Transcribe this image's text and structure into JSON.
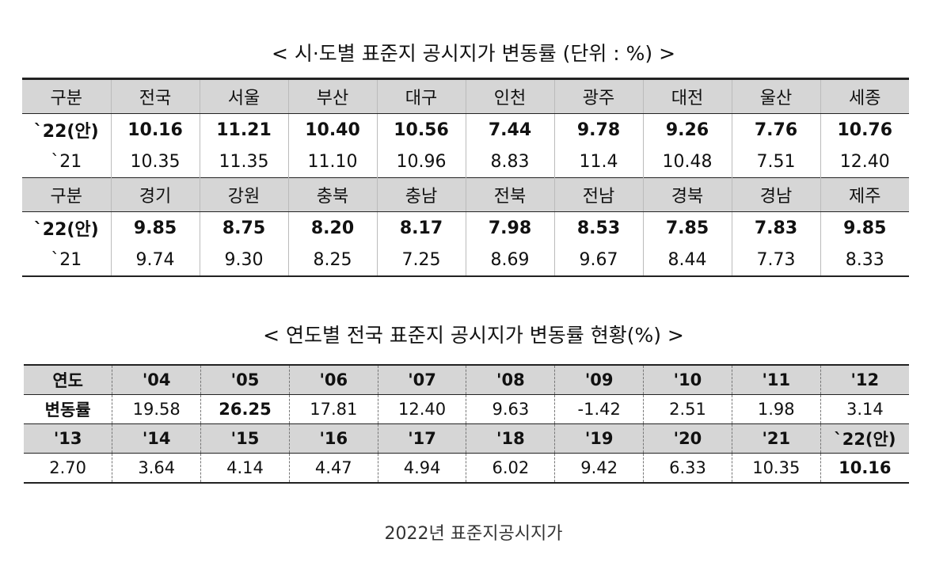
{
  "table1": {
    "title": "< 시·도별 표준지 공시지가 변동률 (단위 : %) >",
    "sections": [
      {
        "header": [
          "구분",
          "전국",
          "서울",
          "부산",
          "대구",
          "인천",
          "광주",
          "대전",
          "울산",
          "세종"
        ],
        "rows": [
          [
            "`22(안)",
            "10.16",
            "11.21",
            "10.40",
            "10.56",
            "7.44",
            "9.78",
            "9.26",
            "7.76",
            "10.76"
          ],
          [
            "`21",
            "10.35",
            "11.35",
            "11.10",
            "10.96",
            "8.83",
            "11.4",
            "10.48",
            "7.51",
            "12.40"
          ]
        ]
      },
      {
        "header": [
          "구분",
          "경기",
          "강원",
          "충북",
          "충남",
          "전북",
          "전남",
          "경북",
          "경남",
          "제주"
        ],
        "rows": [
          [
            "`22(안)",
            "9.85",
            "8.75",
            "8.20",
            "8.17",
            "7.98",
            "8.53",
            "7.85",
            "7.83",
            "9.85"
          ],
          [
            "`21",
            "9.74",
            "9.30",
            "8.25",
            "7.25",
            "8.69",
            "9.67",
            "8.44",
            "7.73",
            "8.33"
          ]
        ]
      }
    ]
  },
  "table2": {
    "title": "< 연도별 전국 표준지 공시지가 변동률 현황(%) >",
    "rows": [
      [
        "연도",
        "'04",
        "'05",
        "'06",
        "'07",
        "'08",
        "'09",
        "'10",
        "'11",
        "'12"
      ],
      [
        "변동률",
        "19.58",
        "26.25",
        "17.81",
        "12.40",
        "9.63",
        "-1.42",
        "2.51",
        "1.98",
        "3.14"
      ],
      [
        "'13",
        "'14",
        "'15",
        "'16",
        "'17",
        "'18",
        "'19",
        "'20",
        "'21",
        "`22(안)"
      ],
      [
        "2.70",
        "3.64",
        "4.14",
        "4.47",
        "4.94",
        "6.02",
        "9.42",
        "6.33",
        "10.35",
        "10.16"
      ]
    ]
  },
  "caption": "2022년 표준지공시지가"
}
